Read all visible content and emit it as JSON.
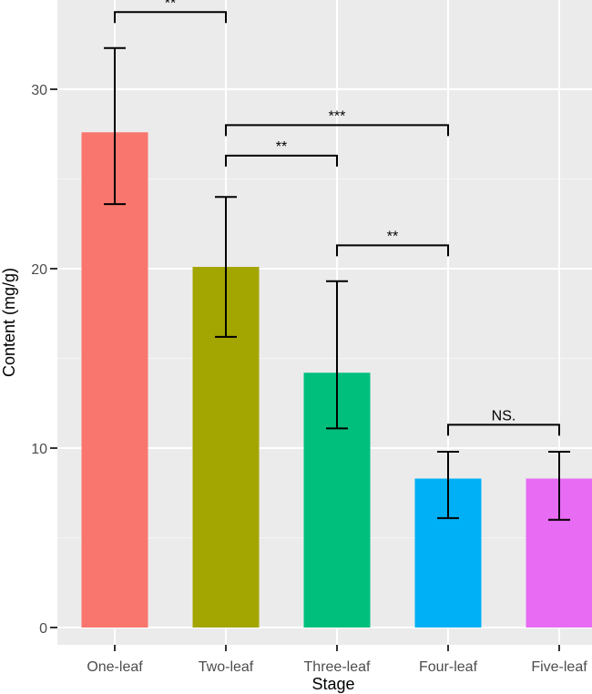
{
  "chart_data": {
    "type": "bar",
    "title": "",
    "xlabel": "Stage",
    "ylabel": "Content (mg/g)",
    "ylim": [
      0,
      34
    ],
    "yticks": [
      0,
      10,
      20,
      30
    ],
    "grid": true,
    "categories": [
      "One-leaf",
      "Two-leaf",
      "Three-leaf",
      "Four-leaf",
      "Five-leaf"
    ],
    "values": [
      27.6,
      20.1,
      14.2,
      8.3,
      8.3
    ],
    "error_low": [
      23.6,
      16.2,
      11.1,
      6.1,
      6.0
    ],
    "error_high": [
      32.3,
      24.0,
      19.3,
      9.8,
      9.8
    ],
    "colors": [
      "#f8766d",
      "#a3a500",
      "#00bf7d",
      "#00b0f6",
      "#e76bf3"
    ],
    "significance": [
      {
        "from": 0,
        "to": 1,
        "y": 34.3,
        "label": "**"
      },
      {
        "from": 1,
        "to": 3,
        "y": 28.0,
        "label": "***"
      },
      {
        "from": 1,
        "to": 2,
        "y": 26.3,
        "label": "**"
      },
      {
        "from": 2,
        "to": 3,
        "y": 21.3,
        "label": "**"
      },
      {
        "from": 3,
        "to": 4,
        "y": 11.3,
        "label": "NS."
      }
    ]
  },
  "style": {
    "panel_bg": "#ebebeb",
    "grid_major": "#ffffff",
    "grid_minor": "#f5f5f5",
    "error_bar": "#000000"
  }
}
